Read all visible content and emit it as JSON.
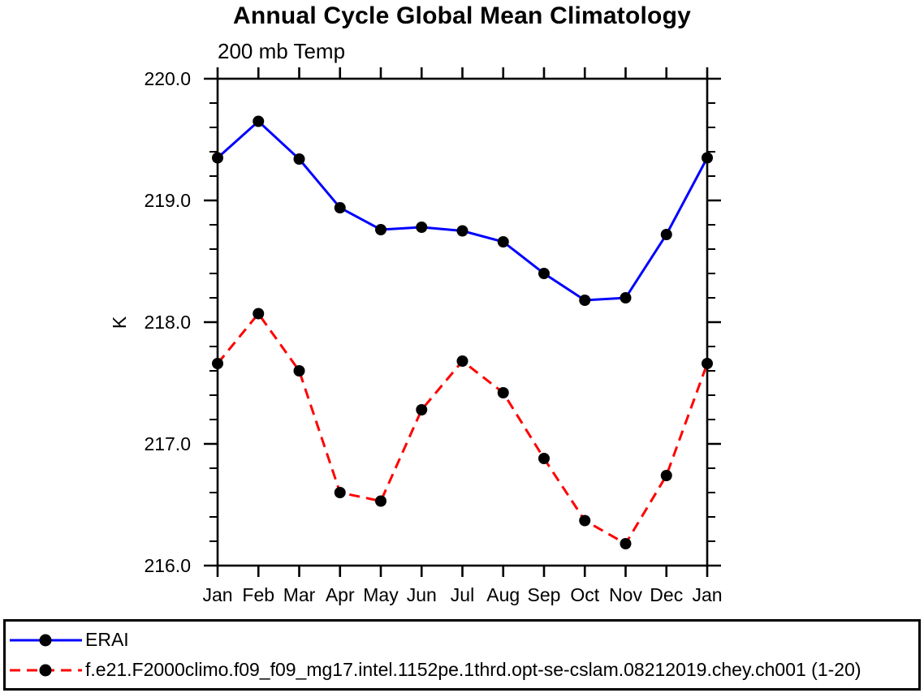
{
  "title": "Annual Cycle Global Mean Climatology",
  "chart_data": {
    "type": "line",
    "title": "Annual Cycle Global Mean Climatology",
    "subtitle_left": "200 mb Temp",
    "ylabel": "K",
    "xlabel": "",
    "categories": [
      "Jan",
      "Feb",
      "Mar",
      "Apr",
      "May",
      "Jun",
      "Jul",
      "Aug",
      "Sep",
      "Oct",
      "Nov",
      "Dec",
      "Jan"
    ],
    "ylim": [
      216.0,
      220.0
    ],
    "yticks_major": [
      220.0,
      219.0,
      218.0,
      217.0,
      216.0
    ],
    "ytick_labels": [
      "220.0",
      "219.0",
      "218.0",
      "217.0",
      "216.0"
    ],
    "ytick_minor_step": 0.2,
    "grid": false,
    "legend_position": "bottom",
    "axis_color": "#000000",
    "text_color": "#000000",
    "series": [
      {
        "name": "ERAI",
        "color": "#0000ff",
        "line_style": "solid",
        "marker": "filled-circle",
        "marker_color": "#000000",
        "values": [
          219.35,
          219.65,
          219.34,
          218.94,
          218.76,
          218.78,
          218.75,
          218.66,
          218.4,
          218.18,
          218.2,
          218.72,
          219.35
        ]
      },
      {
        "name": "f.e21.F2000climo.f09_f09_mg17.intel.1152pe.1thrd.opt-se-cslam.08212019.chey.ch001 (1-20)",
        "color": "#ff0000",
        "line_style": "dashed",
        "marker": "filled-circle",
        "marker_color": "#000000",
        "values": [
          217.66,
          218.07,
          217.6,
          216.6,
          216.53,
          217.28,
          217.68,
          217.42,
          216.88,
          216.37,
          216.18,
          216.74,
          217.66
        ]
      }
    ]
  }
}
